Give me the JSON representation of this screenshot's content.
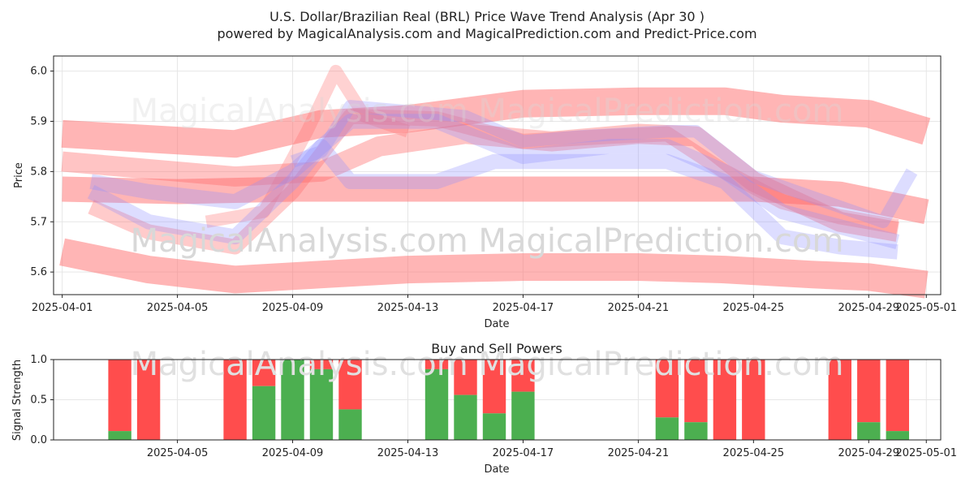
{
  "title_line1": "U.S. Dollar/Brazilian Real (BRL) Price Wave Trend Analysis (Apr 30 )",
  "title_line2": "powered by MagicalAnalysis.com and MagicalPrediction.com and Predict-Price.com",
  "watermarks": [
    "MagicalAnalysis.com",
    "MagicalPrediction.com"
  ],
  "colors": {
    "red_band": "#ff6b6b",
    "blue_band": "#8f8fff",
    "buy": "#4caf50",
    "sell": "#ff4d4d"
  },
  "chart_data": [
    {
      "type": "area",
      "title": "",
      "xlabel": "Date",
      "ylabel": "Price",
      "ylim": [
        5.555,
        6.03
      ],
      "xlim_days": [
        -0.3,
        30.5
      ],
      "x_ticks": [
        "2025-04-01",
        "2025-04-05",
        "2025-04-09",
        "2025-04-13",
        "2025-04-17",
        "2025-04-21",
        "2025-04-25",
        "2025-04-29",
        "2025-05-01"
      ],
      "x_tick_days": [
        0,
        4,
        8,
        12,
        16,
        20,
        24,
        28,
        30
      ],
      "y_ticks": [
        5.6,
        5.7,
        5.8,
        5.9,
        6.0
      ],
      "grid": true,
      "series": [
        {
          "name": "red-band-top",
          "color": "red",
          "width": 0.055,
          "opacity": 0.5,
          "points": [
            [
              0,
              5.875
            ],
            [
              3,
              5.865
            ],
            [
              6,
              5.855
            ],
            [
              9,
              5.895
            ],
            [
              12,
              5.905
            ],
            [
              16,
              5.935
            ],
            [
              20,
              5.94
            ],
            [
              23,
              5.94
            ],
            [
              25,
              5.925
            ],
            [
              28,
              5.915
            ],
            [
              30,
              5.88
            ]
          ]
        },
        {
          "name": "red-band-mid",
          "color": "red",
          "width": 0.05,
          "opacity": 0.5,
          "points": [
            [
              0,
              5.765
            ],
            [
              4,
              5.76
            ],
            [
              8,
              5.765
            ],
            [
              12,
              5.765
            ],
            [
              16,
              5.765
            ],
            [
              20,
              5.765
            ],
            [
              24,
              5.765
            ],
            [
              27,
              5.755
            ],
            [
              30,
              5.72
            ]
          ]
        },
        {
          "name": "red-band-low",
          "color": "red",
          "width": 0.055,
          "opacity": 0.5,
          "points": [
            [
              0,
              5.64
            ],
            [
              3,
              5.605
            ],
            [
              6,
              5.585
            ],
            [
              9,
              5.595
            ],
            [
              12,
              5.605
            ],
            [
              16,
              5.61
            ],
            [
              20,
              5.61
            ],
            [
              23,
              5.605
            ],
            [
              26,
              5.595
            ],
            [
              28,
              5.59
            ],
            [
              30,
              5.575
            ]
          ]
        },
        {
          "name": "red-wave-1",
          "color": "red",
          "width": 0.04,
          "opacity": 0.4,
          "points": [
            [
              0,
              5.82
            ],
            [
              3,
              5.805
            ],
            [
              6,
              5.79
            ],
            [
              9,
              5.8
            ],
            [
              11,
              5.85
            ],
            [
              14,
              5.875
            ],
            [
              17,
              5.86
            ],
            [
              20,
              5.875
            ],
            [
              22,
              5.87
            ],
            [
              24,
              5.78
            ],
            [
              27,
              5.7
            ],
            [
              29,
              5.68
            ]
          ]
        },
        {
          "name": "red-wave-2",
          "color": "red",
          "width": 0.03,
          "opacity": 0.35,
          "points": [
            [
              1,
              5.73
            ],
            [
              3,
              5.68
            ],
            [
              6,
              5.65
            ],
            [
              8,
              5.76
            ],
            [
              10,
              5.91
            ],
            [
              13,
              5.905
            ],
            [
              16,
              5.86
            ],
            [
              19,
              5.87
            ],
            [
              21,
              5.875
            ],
            [
              23,
              5.8
            ],
            [
              25,
              5.74
            ],
            [
              27,
              5.71
            ],
            [
              29,
              5.69
            ]
          ]
        },
        {
          "name": "red-spike",
          "color": "red",
          "width": 0.025,
          "opacity": 0.3,
          "points": [
            [
              5,
              5.7
            ],
            [
              7,
              5.72
            ],
            [
              8.5,
              5.88
            ],
            [
              9.5,
              6.0
            ],
            [
              10.5,
              5.91
            ],
            [
              12,
              5.88
            ]
          ]
        },
        {
          "name": "blue-wave-1",
          "color": "blue",
          "width": 0.03,
          "opacity": 0.3,
          "points": [
            [
              1,
              5.78
            ],
            [
              3,
              5.76
            ],
            [
              6,
              5.74
            ],
            [
              8,
              5.8
            ],
            [
              10,
              5.9
            ],
            [
              13,
              5.9
            ],
            [
              16,
              5.83
            ],
            [
              19,
              5.85
            ],
            [
              21,
              5.85
            ],
            [
              23,
              5.8
            ],
            [
              25,
              5.72
            ],
            [
              27,
              5.69
            ],
            [
              29,
              5.66
            ]
          ]
        },
        {
          "name": "blue-wave-2",
          "color": "blue",
          "width": 0.03,
          "opacity": 0.3,
          "points": [
            [
              1,
              5.76
            ],
            [
              3,
              5.7
            ],
            [
              6,
              5.67
            ],
            [
              8,
              5.78
            ],
            [
              9,
              5.85
            ],
            [
              10,
              5.78
            ],
            [
              13,
              5.78
            ],
            [
              15,
              5.82
            ],
            [
              17,
              5.82
            ],
            [
              21,
              5.82
            ],
            [
              23,
              5.78
            ],
            [
              25,
              5.67
            ],
            [
              27,
              5.65
            ],
            [
              29,
              5.64
            ]
          ]
        },
        {
          "name": "blue-wave-3",
          "color": "blue",
          "width": 0.025,
          "opacity": 0.3,
          "points": [
            [
              8,
              5.82
            ],
            [
              9,
              5.84
            ],
            [
              10,
              5.93
            ],
            [
              12,
              5.92
            ],
            [
              14,
              5.91
            ],
            [
              16,
              5.86
            ],
            [
              18,
              5.87
            ],
            [
              21,
              5.88
            ],
            [
              22,
              5.88
            ],
            [
              24,
              5.79
            ],
            [
              27,
              5.73
            ],
            [
              28.5,
              5.7
            ],
            [
              29.5,
              5.8
            ]
          ]
        }
      ]
    },
    {
      "type": "bar",
      "title": "Buy and Sell Powers",
      "xlabel": "Date",
      "ylabel": "Signal Strength",
      "ylim": [
        0,
        1
      ],
      "y_ticks": [
        "0.0",
        "0.5",
        "1.0"
      ],
      "x_ticks": [
        "2025-04-05",
        "2025-04-09",
        "2025-04-13",
        "2025-04-17",
        "2025-04-21",
        "2025-04-25",
        "2025-04-29",
        "2025-05-01"
      ],
      "x_tick_days": [
        4,
        8,
        12,
        16,
        20,
        24,
        28,
        30
      ],
      "xlim_days": [
        -0.3,
        30.5
      ],
      "series": [
        {
          "name": "Buy",
          "color": "green"
        },
        {
          "name": "Sell",
          "color": "red"
        }
      ],
      "bars": [
        {
          "day": 2,
          "buy": 0.11
        },
        {
          "day": 3,
          "buy": 0.0
        },
        {
          "day": 6,
          "buy": 0.0
        },
        {
          "day": 7,
          "buy": 0.67
        },
        {
          "day": 8,
          "buy": 1.0
        },
        {
          "day": 9,
          "buy": 0.88
        },
        {
          "day": 10,
          "buy": 0.38
        },
        {
          "day": 13,
          "buy": 0.88
        },
        {
          "day": 14,
          "buy": 0.56
        },
        {
          "day": 15,
          "buy": 0.33
        },
        {
          "day": 16,
          "buy": 0.6
        },
        {
          "day": 21,
          "buy": 0.28
        },
        {
          "day": 22,
          "buy": 0.22
        },
        {
          "day": 23,
          "buy": 0.0
        },
        {
          "day": 24,
          "buy": 0.0
        },
        {
          "day": 27,
          "buy": 0.0
        },
        {
          "day": 28,
          "buy": 0.22
        },
        {
          "day": 29,
          "buy": 0.11
        }
      ]
    }
  ]
}
